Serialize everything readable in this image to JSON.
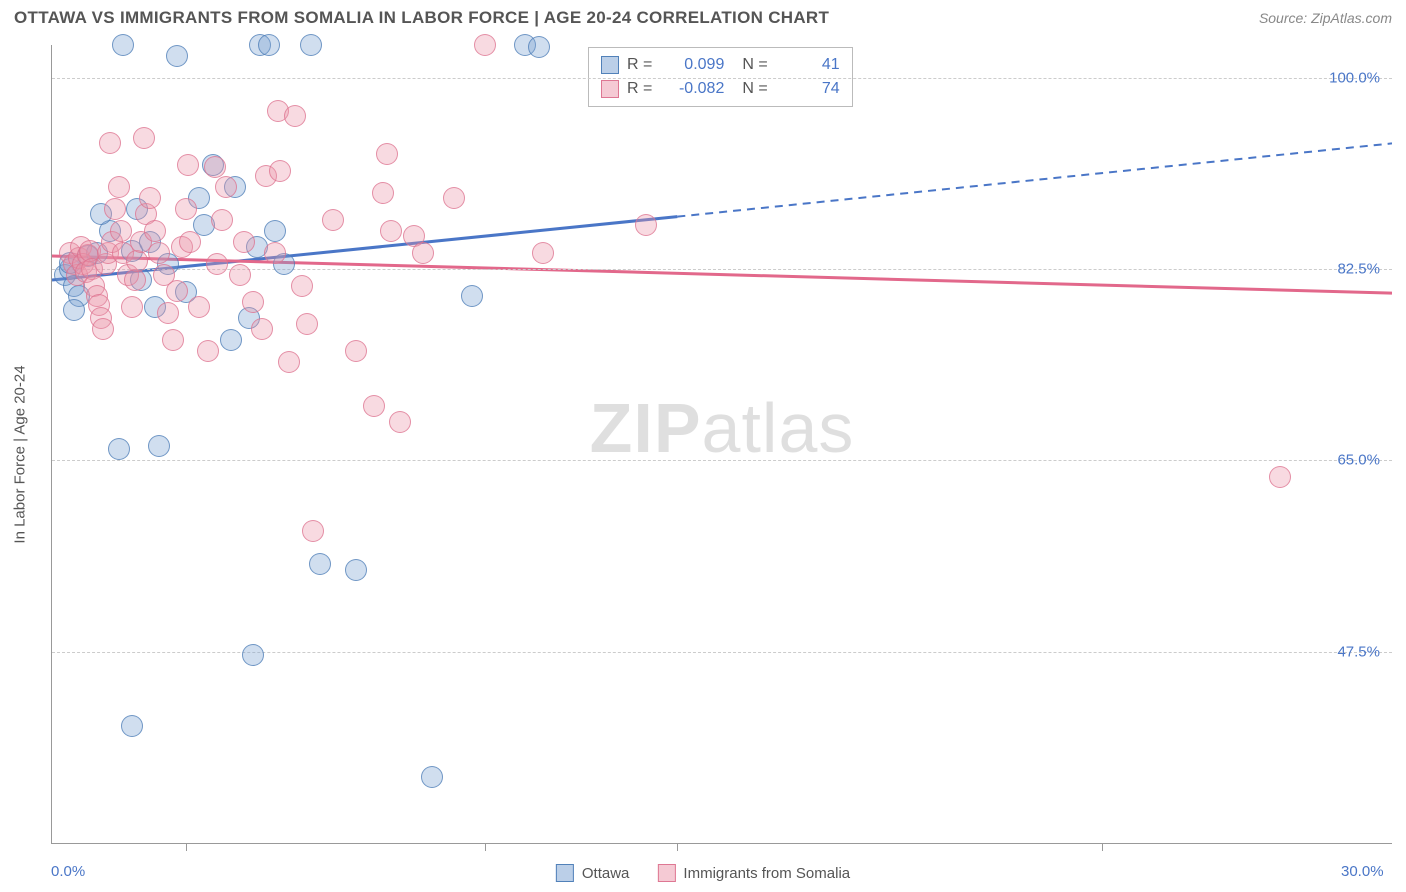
{
  "header": {
    "title": "OTTAWA VS IMMIGRANTS FROM SOMALIA IN LABOR FORCE | AGE 20-24 CORRELATION CHART",
    "source": "Source: ZipAtlas.com"
  },
  "watermark": {
    "bold": "ZIP",
    "light": "atlas"
  },
  "chart": {
    "type": "scatter-with-regression",
    "ylabel": "In Labor Force | Age 20-24",
    "ylim": [
      30,
      103
    ],
    "xlim": [
      0,
      30
    ],
    "y_ticks": [
      {
        "value": 47.5,
        "label": "47.5%"
      },
      {
        "value": 65.0,
        "label": "65.0%"
      },
      {
        "value": 82.5,
        "label": "82.5%"
      },
      {
        "value": 100.0,
        "label": "100.0%"
      }
    ],
    "x_ticks_lines": [
      3.0,
      9.7,
      14.0,
      23.5
    ],
    "x_tick_labels": [
      {
        "value": 0,
        "label": "0.0%"
      },
      {
        "value": 30,
        "label": "30.0%"
      }
    ],
    "series": [
      {
        "name": "Ottawa",
        "color_fill": "rgba(120,160,210,0.35)",
        "color_stroke": "#4a76c7",
        "regression": {
          "x1": 0,
          "y1": 81.5,
          "x2_solid": 14.0,
          "y2_solid": 87.3,
          "x2": 30,
          "y2": 94.0
        },
        "r": "0.099",
        "n": "41",
        "points": [
          [
            0.3,
            82.0
          ],
          [
            0.4,
            82.5
          ],
          [
            0.4,
            83.1
          ],
          [
            0.5,
            81.0
          ],
          [
            0.6,
            80.0
          ],
          [
            0.5,
            78.8
          ],
          [
            0.8,
            83.7
          ],
          [
            1.6,
            103.0
          ],
          [
            2.8,
            102.0
          ],
          [
            2.4,
            66.3
          ],
          [
            1.5,
            66.0
          ],
          [
            1.8,
            84.2
          ],
          [
            1.3,
            86.0
          ],
          [
            1.1,
            87.5
          ],
          [
            1.0,
            84.0
          ],
          [
            1.9,
            88.0
          ],
          [
            2.2,
            85.0
          ],
          [
            2.6,
            83.0
          ],
          [
            3.0,
            80.4
          ],
          [
            3.3,
            89.0
          ],
          [
            3.6,
            92.0
          ],
          [
            4.6,
            84.5
          ],
          [
            4.65,
            103.0
          ],
          [
            4.85,
            103.0
          ],
          [
            5.8,
            103.0
          ],
          [
            4.0,
            76.0
          ],
          [
            4.4,
            78.0
          ],
          [
            5.0,
            86.0
          ],
          [
            5.2,
            83.0
          ],
          [
            6.0,
            55.5
          ],
          [
            6.8,
            55.0
          ],
          [
            4.5,
            47.2
          ],
          [
            1.8,
            40.7
          ],
          [
            9.4,
            80.0
          ],
          [
            8.5,
            36.0
          ],
          [
            10.6,
            103.0
          ],
          [
            10.9,
            102.8
          ],
          [
            2.0,
            81.5
          ],
          [
            3.4,
            86.5
          ],
          [
            4.1,
            90.0
          ],
          [
            2.3,
            79.0
          ]
        ]
      },
      {
        "name": "Immigrants from Somalia",
        "color_fill": "rgba(235,150,170,0.35)",
        "color_stroke": "#e2688b",
        "regression": {
          "x1": 0,
          "y1": 83.7,
          "x2_solid": 30,
          "y2_solid": 80.3,
          "x2": 30,
          "y2": 80.3
        },
        "r": "-0.082",
        "n": "74",
        "points": [
          [
            0.4,
            84.0
          ],
          [
            0.5,
            83.0
          ],
          [
            0.55,
            82.0
          ],
          [
            0.6,
            83.5
          ],
          [
            0.65,
            84.5
          ],
          [
            0.7,
            83.0
          ],
          [
            0.75,
            82.2
          ],
          [
            0.8,
            83.8
          ],
          [
            0.85,
            84.2
          ],
          [
            0.9,
            82.5
          ],
          [
            0.95,
            81.0
          ],
          [
            1.0,
            80.0
          ],
          [
            1.05,
            79.2
          ],
          [
            1.1,
            78.0
          ],
          [
            1.15,
            77.0
          ],
          [
            1.2,
            83.0
          ],
          [
            1.25,
            84.0
          ],
          [
            1.35,
            85.0
          ],
          [
            1.4,
            88.0
          ],
          [
            1.5,
            90.0
          ],
          [
            1.55,
            86.0
          ],
          [
            1.6,
            84.0
          ],
          [
            1.7,
            82.0
          ],
          [
            1.8,
            79.0
          ],
          [
            1.85,
            81.5
          ],
          [
            1.9,
            83.2
          ],
          [
            2.0,
            85.0
          ],
          [
            2.1,
            87.5
          ],
          [
            2.2,
            89.0
          ],
          [
            2.3,
            86.0
          ],
          [
            2.4,
            84.0
          ],
          [
            2.5,
            82.0
          ],
          [
            2.6,
            78.5
          ],
          [
            2.7,
            76.0
          ],
          [
            2.8,
            80.5
          ],
          [
            2.9,
            84.5
          ],
          [
            3.0,
            88.0
          ],
          [
            3.05,
            92.0
          ],
          [
            3.1,
            85.0
          ],
          [
            3.3,
            79.0
          ],
          [
            3.5,
            75.0
          ],
          [
            3.7,
            83.0
          ],
          [
            3.8,
            87.0
          ],
          [
            3.9,
            90.0
          ],
          [
            4.2,
            82.0
          ],
          [
            4.3,
            85.0
          ],
          [
            4.5,
            79.5
          ],
          [
            4.7,
            77.0
          ],
          [
            4.8,
            91.0
          ],
          [
            5.0,
            84.0
          ],
          [
            5.05,
            97.0
          ],
          [
            5.1,
            91.5
          ],
          [
            5.3,
            74.0
          ],
          [
            5.45,
            96.5
          ],
          [
            5.6,
            81.0
          ],
          [
            5.7,
            77.5
          ],
          [
            5.85,
            58.5
          ],
          [
            6.3,
            87.0
          ],
          [
            6.8,
            75.0
          ],
          [
            7.2,
            70.0
          ],
          [
            7.4,
            89.5
          ],
          [
            7.5,
            93.0
          ],
          [
            7.6,
            86.0
          ],
          [
            7.8,
            68.5
          ],
          [
            8.1,
            85.5
          ],
          [
            8.3,
            84.0
          ],
          [
            9.0,
            89.0
          ],
          [
            9.7,
            103.0
          ],
          [
            11.0,
            84.0
          ],
          [
            1.3,
            94.0
          ],
          [
            2.05,
            94.5
          ],
          [
            3.65,
            91.8
          ],
          [
            13.3,
            86.5
          ],
          [
            27.5,
            63.5
          ]
        ]
      }
    ]
  },
  "legend_top": {
    "rows": [
      {
        "cls": "blue",
        "r_label": "R =",
        "r": "0.099",
        "n_label": "N =",
        "n": "41"
      },
      {
        "cls": "pink",
        "r_label": "R =",
        "r": "-0.082",
        "n_label": "N =",
        "n": "74"
      }
    ]
  },
  "legend_bottom": {
    "items": [
      {
        "cls": "blue",
        "label": "Ottawa"
      },
      {
        "cls": "pink",
        "label": "Immigrants from Somalia"
      }
    ]
  }
}
